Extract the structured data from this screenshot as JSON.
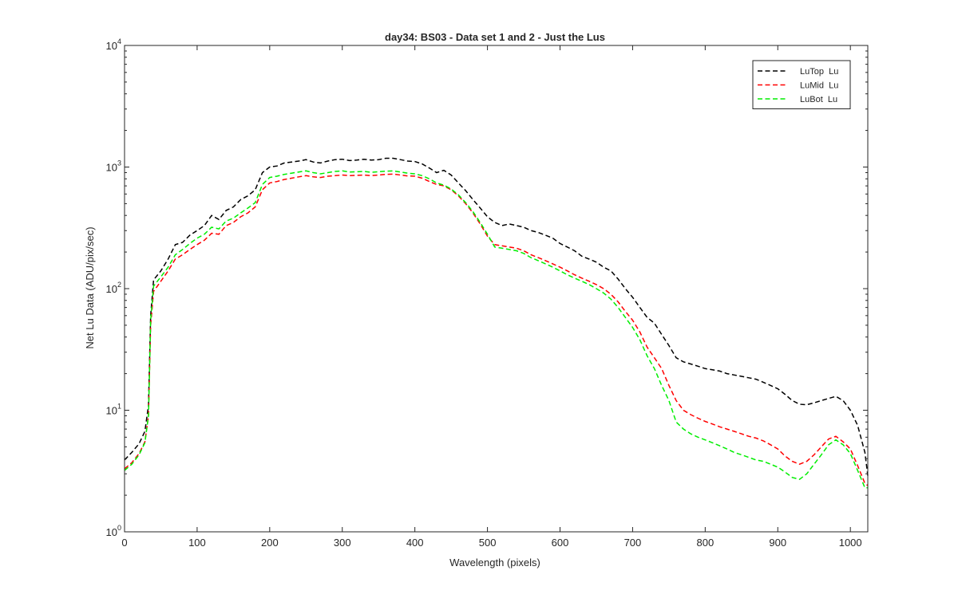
{
  "chart_data": {
    "type": "line",
    "title": "day34: BS03 - Data set 1 and 2 - Just the Lus",
    "xlabel": "Wavelength (pixels)",
    "ylabel": "Net Lu Data (ADU/pix/sec)",
    "xlim": [
      0,
      1024
    ],
    "ylim": [
      1,
      10000
    ],
    "yscale": "log",
    "grid": false,
    "legend_position": "top-right",
    "xticks": [
      0,
      100,
      200,
      300,
      400,
      500,
      600,
      700,
      800,
      900,
      1000
    ],
    "xtick_labels": [
      "0",
      "100",
      "200",
      "300",
      "400",
      "500",
      "600",
      "700",
      "800",
      "900",
      "1000"
    ],
    "yticks": [
      {
        "value": 1,
        "base": "10",
        "exp": "0"
      },
      {
        "value": 10,
        "base": "10",
        "exp": "1"
      },
      {
        "value": 100,
        "base": "10",
        "exp": "2"
      },
      {
        "value": 1000,
        "base": "10",
        "exp": "3"
      },
      {
        "value": 10000,
        "base": "10",
        "exp": "4"
      }
    ],
    "series": [
      {
        "name": "LuTop  Lu",
        "color": "#000000",
        "x": [
          0,
          10,
          20,
          28,
          33,
          36,
          40,
          50,
          60,
          70,
          80,
          90,
          100,
          110,
          120,
          130,
          140,
          150,
          160,
          170,
          180,
          190,
          200,
          210,
          220,
          230,
          240,
          250,
          260,
          270,
          280,
          290,
          300,
          310,
          320,
          330,
          340,
          350,
          360,
          370,
          380,
          390,
          400,
          410,
          420,
          430,
          440,
          450,
          460,
          470,
          480,
          490,
          500,
          510,
          520,
          530,
          540,
          550,
          560,
          570,
          580,
          590,
          600,
          610,
          620,
          630,
          640,
          650,
          660,
          670,
          680,
          690,
          700,
          710,
          720,
          730,
          740,
          750,
          760,
          770,
          780,
          790,
          800,
          810,
          820,
          830,
          840,
          850,
          860,
          870,
          880,
          890,
          900,
          910,
          920,
          930,
          940,
          950,
          960,
          970,
          980,
          990,
          1000,
          1010,
          1020,
          1024
        ],
        "y": [
          3.9,
          4.5,
          5.3,
          6.7,
          11,
          60,
          118,
          140,
          175,
          230,
          240,
          275,
          300,
          330,
          400,
          370,
          440,
          470,
          540,
          580,
          650,
          900,
          1000,
          1020,
          1080,
          1100,
          1120,
          1150,
          1100,
          1080,
          1120,
          1150,
          1160,
          1130,
          1140,
          1160,
          1140,
          1150,
          1180,
          1180,
          1150,
          1120,
          1110,
          1060,
          980,
          900,
          940,
          860,
          740,
          640,
          540,
          460,
          390,
          350,
          330,
          340,
          330,
          320,
          300,
          290,
          275,
          260,
          235,
          220,
          205,
          185,
          175,
          165,
          150,
          140,
          120,
          100,
          85,
          70,
          58,
          52,
          42,
          34,
          27,
          25,
          24,
          23,
          22,
          21.5,
          21,
          20,
          19.5,
          19,
          18.5,
          18,
          17,
          16,
          15,
          13.5,
          12,
          11.2,
          11.1,
          11.5,
          12,
          12.5,
          13,
          12,
          10,
          7.5,
          4.5,
          2.9
        ]
      },
      {
        "name": "LuMid  Lu",
        "color": "#ff0000",
        "x": [
          0,
          10,
          20,
          28,
          33,
          36,
          40,
          50,
          60,
          70,
          80,
          90,
          100,
          110,
          120,
          130,
          140,
          150,
          160,
          170,
          180,
          190,
          200,
          210,
          220,
          230,
          240,
          250,
          260,
          270,
          280,
          290,
          300,
          310,
          320,
          330,
          340,
          350,
          360,
          370,
          380,
          390,
          400,
          410,
          420,
          430,
          440,
          450,
          460,
          470,
          480,
          490,
          500,
          510,
          520,
          530,
          540,
          550,
          560,
          570,
          580,
          590,
          600,
          610,
          620,
          630,
          640,
          650,
          660,
          670,
          680,
          690,
          700,
          710,
          720,
          730,
          740,
          750,
          760,
          770,
          780,
          790,
          800,
          810,
          820,
          830,
          840,
          850,
          860,
          870,
          880,
          890,
          900,
          910,
          920,
          930,
          940,
          950,
          960,
          970,
          980,
          990,
          1000,
          1010,
          1020,
          1024
        ],
        "y": [
          3.3,
          3.7,
          4.4,
          5.5,
          9,
          50,
          95,
          115,
          140,
          175,
          190,
          210,
          230,
          250,
          285,
          280,
          330,
          350,
          390,
          420,
          470,
          650,
          740,
          760,
          790,
          810,
          830,
          850,
          830,
          820,
          840,
          850,
          860,
          850,
          855,
          860,
          850,
          860,
          870,
          875,
          860,
          845,
          840,
          810,
          760,
          720,
          700,
          650,
          580,
          500,
          420,
          340,
          270,
          230,
          225,
          220,
          215,
          205,
          190,
          180,
          170,
          160,
          150,
          140,
          130,
          122,
          115,
          108,
          100,
          90,
          78,
          65,
          55,
          44,
          33,
          27,
          22,
          16,
          12,
          10,
          9.2,
          8.6,
          8.1,
          7.7,
          7.3,
          7,
          6.7,
          6.4,
          6.1,
          5.9,
          5.6,
          5.2,
          4.8,
          4.2,
          3.8,
          3.6,
          3.8,
          4.3,
          5,
          5.8,
          6.1,
          5.5,
          4.8,
          3.5,
          2.5,
          2.4
        ]
      },
      {
        "name": "LuBot  Lu",
        "color": "#00ee00",
        "x": [
          0,
          10,
          20,
          28,
          33,
          36,
          40,
          50,
          60,
          70,
          80,
          90,
          100,
          110,
          120,
          130,
          140,
          150,
          160,
          170,
          180,
          190,
          200,
          210,
          220,
          230,
          240,
          250,
          260,
          270,
          280,
          290,
          300,
          310,
          320,
          330,
          340,
          350,
          360,
          370,
          380,
          390,
          400,
          410,
          420,
          430,
          440,
          450,
          460,
          470,
          480,
          490,
          500,
          510,
          520,
          530,
          540,
          550,
          560,
          570,
          580,
          590,
          600,
          610,
          620,
          630,
          640,
          650,
          660,
          670,
          680,
          690,
          700,
          710,
          720,
          730,
          740,
          750,
          760,
          770,
          780,
          790,
          800,
          810,
          820,
          830,
          840,
          850,
          860,
          870,
          880,
          890,
          900,
          910,
          920,
          930,
          940,
          950,
          960,
          970,
          980,
          990,
          1000,
          1010,
          1020,
          1024
        ],
        "y": [
          3.2,
          3.6,
          4.3,
          5.4,
          9,
          55,
          105,
          125,
          150,
          190,
          210,
          235,
          260,
          280,
          320,
          310,
          360,
          380,
          420,
          460,
          510,
          720,
          820,
          840,
          870,
          890,
          910,
          930,
          900,
          880,
          900,
          920,
          930,
          910,
          915,
          920,
          905,
          915,
          925,
          930,
          910,
          890,
          880,
          850,
          800,
          740,
          710,
          660,
          590,
          510,
          430,
          350,
          280,
          220,
          215,
          210,
          205,
          195,
          180,
          170,
          160,
          150,
          140,
          130,
          122,
          115,
          108,
          100,
          92,
          82,
          70,
          58,
          48,
          38,
          28,
          22,
          16,
          12,
          8,
          7,
          6.4,
          6,
          5.7,
          5.4,
          5.1,
          4.8,
          4.5,
          4.3,
          4.1,
          3.9,
          3.8,
          3.6,
          3.4,
          3.1,
          2.8,
          2.7,
          3,
          3.6,
          4.3,
          5.2,
          5.7,
          5.2,
          4.4,
          3.2,
          2.3,
          2.3
        ]
      }
    ]
  }
}
